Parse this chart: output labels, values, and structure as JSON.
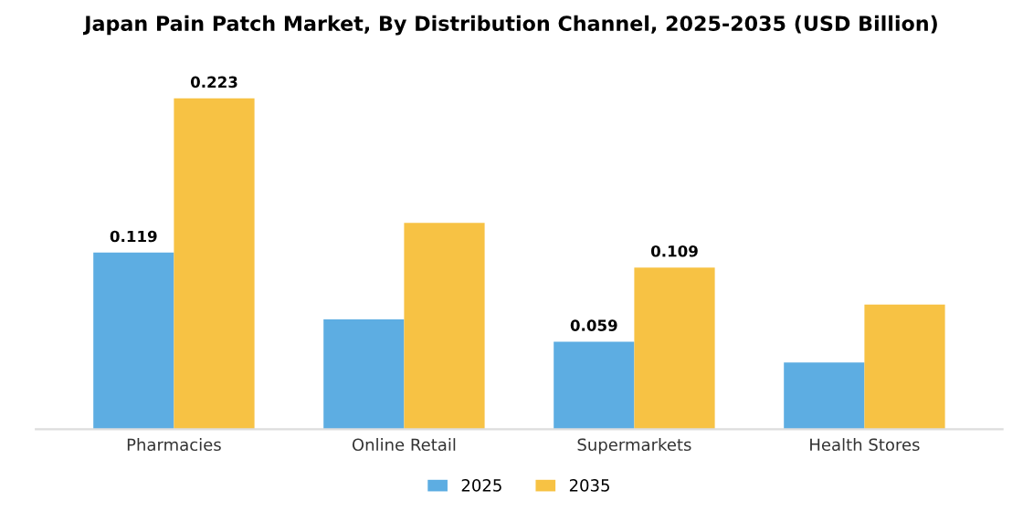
{
  "chart_data": {
    "type": "bar",
    "title": "Japan Pain Patch Market, By Distribution Channel, 2025-2035 (USD Billion)",
    "categories": [
      "Pharmacies",
      "Online Retail",
      "Supermarkets",
      "Health Stores"
    ],
    "series": [
      {
        "name": "2025",
        "color": "#5dade2",
        "values": [
          0.119,
          0.074,
          0.059,
          0.045
        ],
        "value_labels": [
          "0.119",
          null,
          "0.059",
          null
        ]
      },
      {
        "name": "2035",
        "color": "#f7c244",
        "values": [
          0.223,
          0.139,
          0.109,
          0.084
        ],
        "value_labels": [
          "0.223",
          null,
          "0.109",
          null
        ]
      }
    ],
    "tick_labels": "x",
    "legend": "bottom",
    "grid": false
  }
}
